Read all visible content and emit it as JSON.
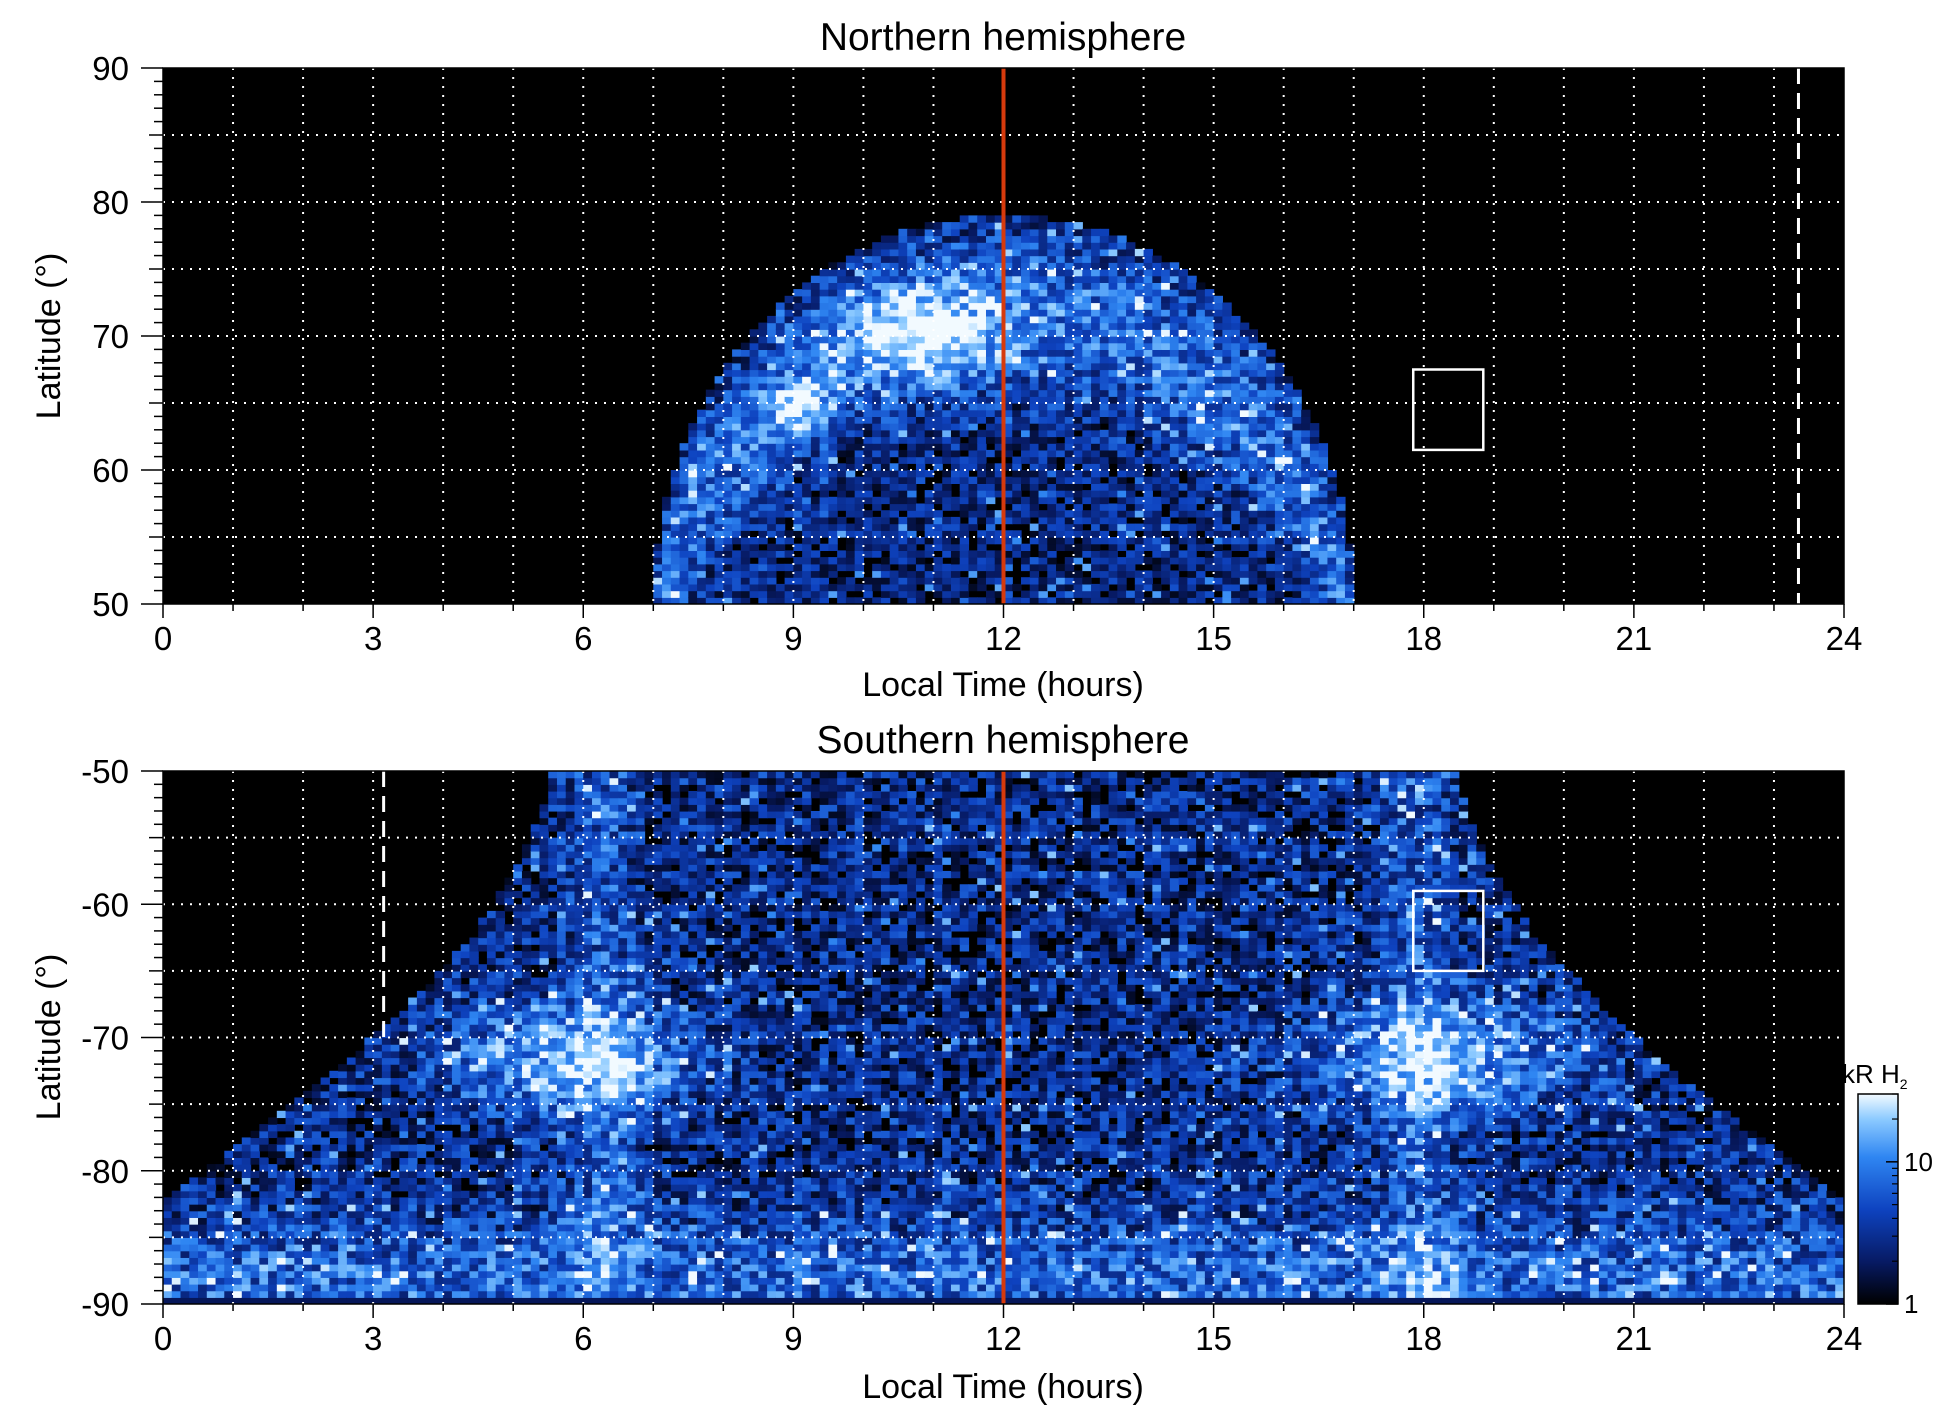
{
  "chart_data": [
    {
      "type": "heatmap",
      "title": "Northern hemisphere",
      "xlabel": "Local Time (hours)",
      "ylabel": "Latitude (°)",
      "xlim": [
        0,
        24
      ],
      "ylim": [
        50,
        90
      ],
      "x_ticks": [
        0,
        3,
        6,
        9,
        12,
        15,
        18,
        21,
        24
      ],
      "y_ticks": [
        50,
        60,
        70,
        80,
        90
      ],
      "grid": true,
      "background": "#000000",
      "colormap": [
        "#000000",
        "#0a2a8a",
        "#1a64e0",
        "#5ab0ff",
        "#e8f6ff"
      ],
      "coverage": {
        "lt_range": [
          7,
          17
        ],
        "center_lt": 12,
        "lat_edge_center": 79,
        "lat_edge_flank": 50
      },
      "bright_band": {
        "lat_range": [
          63,
          75
        ],
        "lt_range": [
          8,
          16
        ],
        "peak_lt": 10.9,
        "peak_lat": 70
      },
      "vertical_line": {
        "lt": 12,
        "color": "#d63a0c",
        "style": "solid"
      },
      "dashed_line": {
        "lt": 23.35,
        "color": "#ffffff",
        "style": "dashed",
        "lat_range": [
          50,
          90
        ]
      },
      "box": {
        "lt_range": [
          17.85,
          18.85
        ],
        "lat_range": [
          61.5,
          67.5
        ],
        "color": "#ffffff"
      }
    },
    {
      "type": "heatmap",
      "title": "Southern hemisphere",
      "xlabel": "Local Time (hours)",
      "ylabel": "Latitude (°)",
      "xlim": [
        0,
        24
      ],
      "ylim": [
        -90,
        -50
      ],
      "x_ticks": [
        0,
        3,
        6,
        9,
        12,
        15,
        18,
        21,
        24
      ],
      "y_ticks": [
        -90,
        -80,
        -70,
        -60,
        -50
      ],
      "grid": true,
      "background": "#000000",
      "colormap": [
        "#000000",
        "#0a2a8a",
        "#1a64e0",
        "#5ab0ff",
        "#e8f6ff"
      ],
      "coverage": {
        "lt_range": [
          0,
          24
        ],
        "full_lat_lt_range": [
          5.5,
          19
        ]
      },
      "bright_band": {
        "lat_range": [
          -75,
          -65
        ],
        "peaks": [
          {
            "lt": 5.8,
            "lat": -71
          },
          {
            "lt": 18.5,
            "lat": -73
          }
        ]
      },
      "vertical_line": {
        "lt": 12,
        "color": "#d63a0c",
        "style": "solid"
      },
      "dashed_line": {
        "lt": 3.15,
        "color": "#ffffff",
        "style": "dashed",
        "lat_range": [
          -70,
          -50
        ]
      },
      "box": {
        "lt_range": [
          17.85,
          18.85
        ],
        "lat_range": [
          -65,
          -59
        ],
        "color": "#ffffff"
      },
      "colorbar": {
        "label_prefix": "kR H",
        "label_subscript": "2",
        "scale": "log",
        "range": [
          1,
          30
        ],
        "ticks": [
          {
            "value": 1,
            "label": "1"
          },
          {
            "value": 10,
            "label": "10"
          }
        ]
      }
    }
  ]
}
